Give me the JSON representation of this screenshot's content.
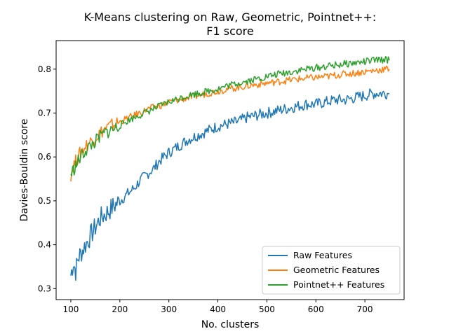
{
  "chart_data": {
    "type": "line",
    "title_lines": [
      "K-Means clustering on Raw, Geometric, Pointnet++:",
      "F1 score"
    ],
    "xlabel": "No. clusters",
    "ylabel": "Davies-Bouldin score",
    "xlim": [
      70,
      780
    ],
    "ylim": [
      0.275,
      0.865
    ],
    "xticks": [
      100,
      200,
      300,
      400,
      500,
      600,
      700
    ],
    "yticks": [
      0.3,
      0.4,
      0.5,
      0.6,
      0.7,
      0.8
    ],
    "grid": false,
    "legend_position": "lower-right",
    "series": [
      {
        "name": "Raw Features",
        "color": "#1f77b4",
        "x": [
          100,
          105,
          110,
          115,
          120,
          130,
          140,
          150,
          160,
          170,
          180,
          190,
          200,
          210,
          220,
          230,
          240,
          250,
          260,
          270,
          280,
          290,
          300,
          320,
          340,
          360,
          380,
          400,
          420,
          440,
          460,
          480,
          500,
          520,
          540,
          560,
          580,
          600,
          620,
          640,
          660,
          680,
          700,
          720,
          740,
          750
        ],
        "y": [
          0.33,
          0.36,
          0.34,
          0.37,
          0.38,
          0.4,
          0.42,
          0.44,
          0.46,
          0.47,
          0.48,
          0.49,
          0.5,
          0.51,
          0.52,
          0.53,
          0.545,
          0.555,
          0.565,
          0.575,
          0.59,
          0.6,
          0.61,
          0.625,
          0.64,
          0.65,
          0.66,
          0.67,
          0.675,
          0.68,
          0.69,
          0.695,
          0.7,
          0.705,
          0.71,
          0.715,
          0.72,
          0.72,
          0.725,
          0.73,
          0.73,
          0.735,
          0.74,
          0.745,
          0.745,
          0.745
        ]
      },
      {
        "name": "Geometric Features",
        "color": "#ff7f0e",
        "x": [
          100,
          105,
          110,
          115,
          120,
          130,
          140,
          150,
          160,
          170,
          180,
          190,
          200,
          210,
          220,
          230,
          240,
          250,
          260,
          270,
          280,
          290,
          300,
          320,
          340,
          360,
          380,
          400,
          420,
          440,
          460,
          480,
          500,
          520,
          540,
          560,
          580,
          600,
          620,
          640,
          660,
          680,
          700,
          720,
          740,
          750
        ],
        "y": [
          0.56,
          0.58,
          0.59,
          0.6,
          0.61,
          0.625,
          0.635,
          0.645,
          0.655,
          0.665,
          0.67,
          0.675,
          0.68,
          0.685,
          0.69,
          0.695,
          0.7,
          0.705,
          0.71,
          0.713,
          0.716,
          0.72,
          0.725,
          0.73,
          0.735,
          0.74,
          0.745,
          0.75,
          0.755,
          0.758,
          0.762,
          0.765,
          0.768,
          0.771,
          0.774,
          0.777,
          0.779,
          0.781,
          0.783,
          0.786,
          0.789,
          0.791,
          0.794,
          0.797,
          0.8,
          0.8
        ]
      },
      {
        "name": "Pointnet++ Features",
        "color": "#2ca02c",
        "x": [
          100,
          105,
          110,
          115,
          120,
          130,
          140,
          150,
          160,
          170,
          180,
          190,
          200,
          210,
          220,
          230,
          240,
          250,
          260,
          270,
          280,
          290,
          300,
          320,
          340,
          360,
          380,
          400,
          420,
          440,
          460,
          480,
          500,
          520,
          540,
          560,
          580,
          600,
          620,
          640,
          660,
          680,
          700,
          720,
          740,
          750
        ],
        "y": [
          0.56,
          0.57,
          0.58,
          0.59,
          0.6,
          0.615,
          0.625,
          0.635,
          0.645,
          0.655,
          0.66,
          0.665,
          0.672,
          0.678,
          0.685,
          0.69,
          0.695,
          0.7,
          0.705,
          0.71,
          0.715,
          0.72,
          0.725,
          0.733,
          0.74,
          0.745,
          0.75,
          0.755,
          0.762,
          0.768,
          0.773,
          0.778,
          0.783,
          0.788,
          0.792,
          0.796,
          0.8,
          0.803,
          0.806,
          0.809,
          0.812,
          0.814,
          0.817,
          0.82,
          0.822,
          0.82
        ]
      }
    ]
  }
}
